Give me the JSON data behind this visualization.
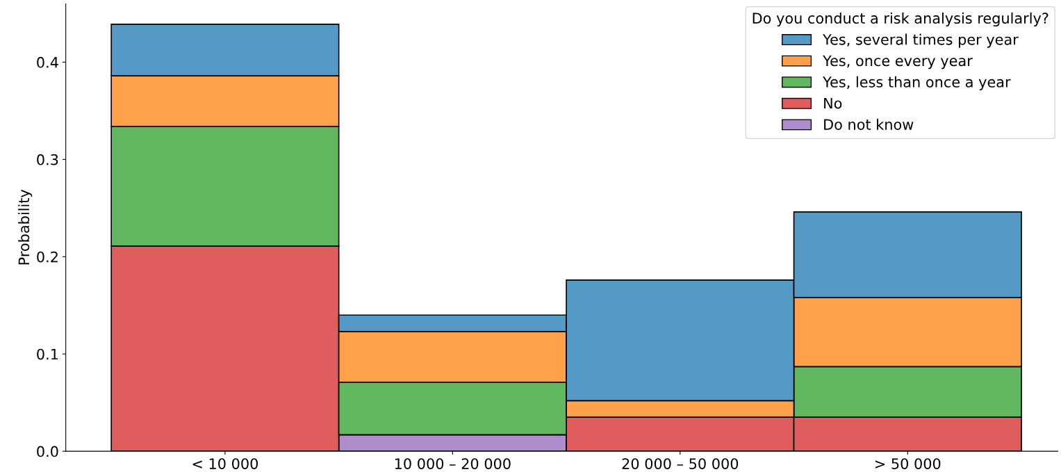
{
  "chart_data": {
    "type": "bar",
    "stacked": true,
    "ylabel": "Probability",
    "legend_title": "Do you conduct a risk analysis regularly?",
    "legend": "top right",
    "grid": false,
    "categories": [
      "< 10 000",
      "10 000 – 20 000",
      "20 000 – 50 000",
      "> 50 000"
    ],
    "ylim": [
      0,
      0.46
    ],
    "yticks": [
      {
        "value": 0,
        "label": "0.0"
      },
      0.1,
      0.2,
      0.3,
      0.4
    ],
    "series": [
      {
        "name": "Do not know",
        "color": "#ae8dcd",
        "values": [
          0,
          0.017,
          0,
          0
        ]
      },
      {
        "name": "No",
        "color": "#e05d5e",
        "values": [
          0.211,
          0,
          0.035,
          0.035
        ]
      },
      {
        "name": "Yes, less than once a year",
        "color": "#61b861",
        "values": [
          0.123,
          0.054,
          0,
          0.052
        ]
      },
      {
        "name": "Yes, once every year",
        "color": "#ffa04a",
        "values": [
          0.052,
          0.052,
          0.017,
          0.071
        ]
      },
      {
        "name": "Yes, several times per year",
        "color": "#5599c7",
        "values": [
          0.053,
          0.017,
          0.124,
          0.088
        ]
      }
    ]
  }
}
